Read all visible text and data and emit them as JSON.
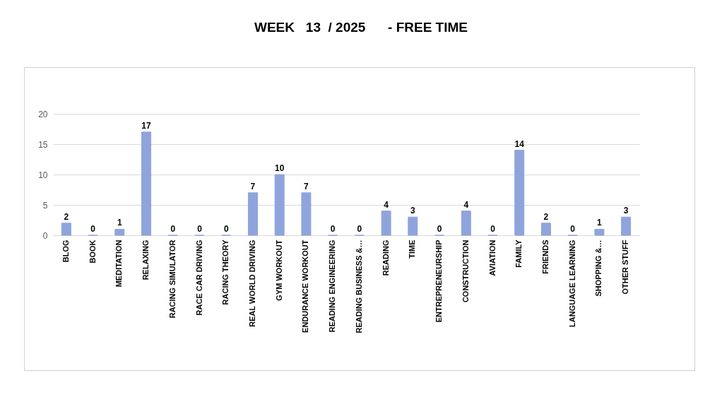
{
  "chart_data": {
    "type": "bar",
    "title": "WEEK   13  / 2025      - FREE TIME",
    "categories": [
      "BLOG",
      "BOOK",
      "MEDITATION",
      "RELAXING",
      "RACING SIMULATOR",
      "RACE CAR DRIVING",
      "RACING THEORY",
      "REAL WORLD DRIVING",
      "GYM WORKOUT",
      "ENDURANCE WORKOUT",
      "READING ENGINEERING",
      "READING BUSINESS &…",
      "READING",
      "TIME",
      "ENTREPRENEURSHIP",
      "CONSTRUCTION",
      "AVIATION",
      "FAMILY",
      "FRIENDS",
      "LANGUAGE LEARNING",
      "SHOPPING &…",
      "OTHER STUFF"
    ],
    "values": [
      2,
      0,
      1,
      17,
      0,
      0,
      0,
      7,
      10,
      7,
      0,
      0,
      4,
      3,
      0,
      4,
      0,
      14,
      2,
      0,
      1,
      3
    ],
    "color": "#8fa4dc",
    "ylim": [
      0,
      20
    ],
    "yticks": [
      0,
      5,
      10,
      15,
      20
    ],
    "grid": "y",
    "data_labels": true
  }
}
